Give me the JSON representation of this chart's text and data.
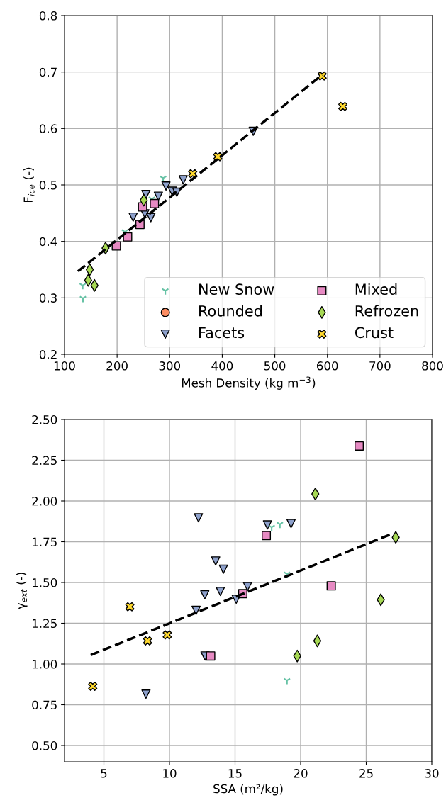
{
  "chart_data": [
    {
      "type": "scatter",
      "xlabel": "Mesh Density (kg m$^{−3}$)",
      "ylabel": "F$_{ice}$ (-)",
      "xlim": [
        100,
        800
      ],
      "ylim": [
        0.2,
        0.8
      ],
      "xticks": [
        100,
        200,
        300,
        400,
        500,
        600,
        700,
        800
      ],
      "yticks": [
        0.2,
        0.3,
        0.4,
        0.5,
        0.6,
        0.7,
        0.8
      ],
      "grid": true,
      "legend": "bottom right",
      "series": [
        {
          "name": "New Snow",
          "color": "#66c2a5",
          "x": [
            287.6,
            134.6,
            135,
            214.7,
            266
          ],
          "values": [
            0.512,
            0.322,
            0.299,
            0.417,
            0.475
          ]
        },
        {
          "name": "Rounded",
          "color": "#fc8d62",
          "marker": "circle"
        },
        {
          "name": "Facets",
          "color": "#8da0cb",
          "marker": "triangle_down",
          "x": [
            254.8,
            278.5,
            293,
            325.8,
            304.7,
            313.6,
            230.5,
            252.9,
            264.2,
            459
          ],
          "values": [
            0.483,
            0.48,
            0.498,
            0.509,
            0.489,
            0.487,
            0.443,
            0.449,
            0.442,
            0.595
          ]
        },
        {
          "name": "Mixed",
          "color": "#e78ac3",
          "marker": "square",
          "x": [
            248.4,
            271,
            243.5,
            220,
            198.5
          ],
          "values": [
            0.461,
            0.467,
            0.43,
            0.408,
            0.392
          ]
        },
        {
          "name": "Refrozen",
          "color": "#a6d854",
          "marker": "diamond",
          "x": [
            250.7,
            178,
            148,
            145,
            157
          ],
          "values": [
            0.473,
            0.388,
            0.35,
            0.331,
            0.322
          ]
        },
        {
          "name": "Crust",
          "color": "#ffd92f",
          "marker": "cross",
          "x": [
            343.8,
            391.5,
            590,
            629.4
          ],
          "values": [
            0.52,
            0.55,
            0.693,
            0.639
          ]
        },
        {
          "type": "line",
          "color": "#000000",
          "line_style": "dashed",
          "x": [
            125.6,
            590
          ],
          "values": [
            0.347,
            0.695
          ]
        }
      ]
    },
    {
      "type": "scatter",
      "xlabel": "SSA (m²/kg)",
      "ylabel": "γ$_{ext}$ (-)",
      "xlim": [
        2,
        30
      ],
      "ylim": [
        0.4,
        2.5
      ],
      "xticks": [
        5,
        10,
        15,
        20,
        25,
        30
      ],
      "yticks": [
        {
          "value": 0.5,
          "label": "0.50"
        },
        {
          "value": 0.75,
          "label": "0.75"
        },
        {
          "value": 1.0,
          "label": "1.00"
        },
        {
          "value": 1.25,
          "label": "1.25"
        },
        {
          "value": 1.5,
          "label": "1.50"
        },
        {
          "value": 1.75,
          "label": "1.75"
        },
        {
          "value": 2.0,
          "label": "2.00"
        },
        {
          "value": 2.25,
          "label": "2.25"
        },
        {
          "value": 2.5,
          "label": "2.50"
        }
      ],
      "grid": true,
      "series": [
        {
          "color": "#66c2a5",
          "x": [
            17.79,
            18.42,
            18.96,
            18.96
          ],
          "values": [
            1.839,
            1.857,
            1.552,
            0.899
          ]
        },
        {
          "color": "#8da0cb",
          "marker": "triangle_down",
          "x": [
            12.21,
            13.52,
            14.11,
            12.69,
            13.88,
            12.03,
            15.09,
            8.21,
            12.71,
            17.47,
            19.27,
            15.95
          ],
          "values": [
            1.897,
            1.632,
            1.581,
            1.424,
            1.445,
            1.329,
            1.397,
            0.815,
            1.049,
            1.853,
            1.861,
            1.475
          ]
        },
        {
          "color": "#e78ac3",
          "marker": "square",
          "x": [
            13.14,
            24.46,
            17.38,
            22.33,
            15.59
          ],
          "values": [
            1.049,
            2.337,
            1.788,
            1.479,
            1.431
          ]
        },
        {
          "color": "#a6d854",
          "marker": "diamond",
          "x": [
            21.12,
            27.25,
            26.11,
            21.27,
            19.74
          ],
          "values": [
            2.043,
            1.777,
            1.394,
            1.142,
            1.049
          ]
        },
        {
          "color": "#ffd92f",
          "marker": "cross",
          "x": [
            6.98,
            8.33,
            9.83,
            4.15
          ],
          "values": [
            1.351,
            1.142,
            1.179,
            0.863
          ]
        },
        {
          "type": "line",
          "color": "#000000",
          "line_style": "dashed",
          "x": [
            4.0,
            27.0
          ],
          "values": [
            1.055,
            1.8
          ]
        }
      ]
    }
  ]
}
